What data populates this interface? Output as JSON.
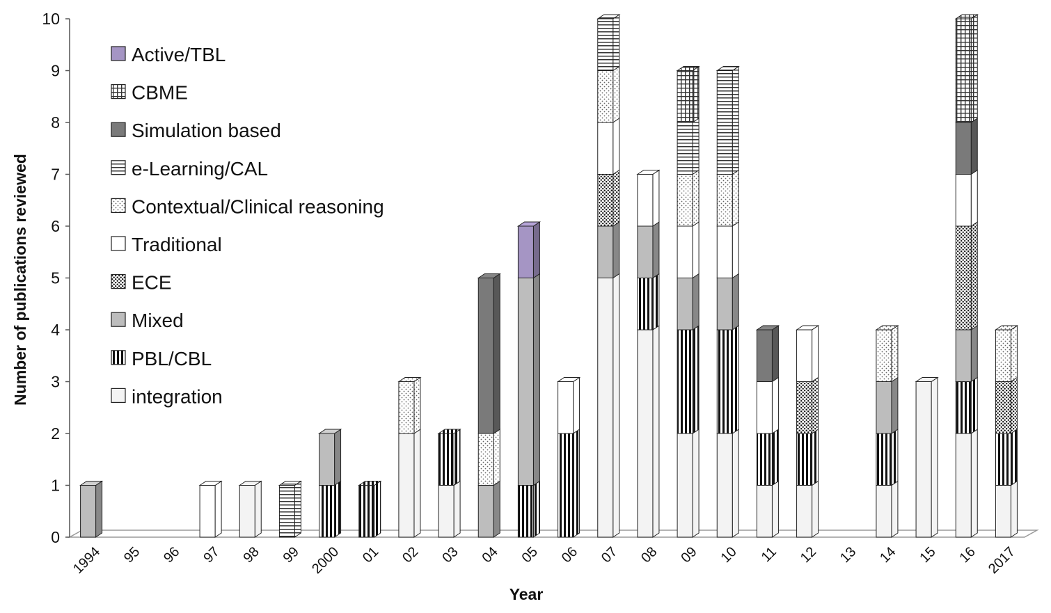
{
  "chart_data": {
    "type": "bar",
    "stacked": true,
    "three_d": true,
    "xlabel": "Year",
    "ylabel": "Number of publications reviewed",
    "ylim": [
      0,
      10
    ],
    "yticks": [
      "0",
      "1",
      "2",
      "3",
      "4",
      "5",
      "6",
      "7",
      "8",
      "9",
      "10"
    ],
    "categories": [
      "1994",
      "95",
      "96",
      "97",
      "98",
      "99",
      "2000",
      "01",
      "02",
      "03",
      "04",
      "05",
      "06",
      "07",
      "08",
      "09",
      "10",
      "11",
      "12",
      "13",
      "14",
      "15",
      "16",
      "2017"
    ],
    "legend_position": "top-left",
    "series": [
      {
        "name": "integration",
        "pattern": "light",
        "color": "#f4f4f4",
        "values": [
          0,
          0,
          0,
          0,
          1,
          0,
          0,
          0,
          2,
          1,
          0,
          0,
          0,
          5,
          4,
          2,
          2,
          1,
          1,
          0,
          1,
          3,
          2,
          1
        ]
      },
      {
        "name": "PBL/CBL",
        "pattern": "vertical-stripes",
        "color": "#111111",
        "values": [
          0,
          0,
          0,
          0,
          0,
          0,
          1,
          1,
          0,
          1,
          0,
          1,
          2,
          0,
          1,
          2,
          2,
          1,
          1,
          0,
          1,
          0,
          1,
          1
        ]
      },
      {
        "name": "Mixed",
        "pattern": "solid",
        "color": "#bdbdbd",
        "values": [
          1,
          0,
          0,
          0,
          0,
          0,
          1,
          0,
          0,
          0,
          1,
          4,
          0,
          1,
          1,
          1,
          1,
          0,
          0,
          0,
          1,
          0,
          1,
          0
        ]
      },
      {
        "name": "ECE",
        "pattern": "dense-dots",
        "color": "#444444",
        "values": [
          0,
          0,
          0,
          0,
          0,
          0,
          0,
          0,
          0,
          0,
          0,
          0,
          0,
          1,
          0,
          0,
          0,
          0,
          1,
          0,
          0,
          0,
          2,
          1
        ]
      },
      {
        "name": "Traditional",
        "pattern": "white",
        "color": "#ffffff",
        "values": [
          0,
          0,
          0,
          1,
          0,
          0,
          0,
          0,
          0,
          0,
          0,
          0,
          1,
          1,
          1,
          1,
          1,
          1,
          1,
          0,
          0,
          0,
          1,
          0
        ]
      },
      {
        "name": "Contextual/Clinical reasoning",
        "pattern": "light-dots",
        "color": "#888888",
        "values": [
          0,
          0,
          0,
          0,
          0,
          0,
          0,
          0,
          1,
          0,
          1,
          0,
          0,
          1,
          0,
          1,
          1,
          0,
          0,
          0,
          1,
          0,
          0,
          1
        ]
      },
      {
        "name": "e-Learning/CAL",
        "pattern": "horizontal-stripes",
        "color": "#555555",
        "values": [
          0,
          0,
          0,
          0,
          0,
          1,
          0,
          0,
          0,
          0,
          0,
          0,
          0,
          1,
          0,
          1,
          2,
          0,
          0,
          0,
          0,
          0,
          0,
          0
        ]
      },
      {
        "name": "Simulation based",
        "pattern": "solid",
        "color": "#7a7a7a",
        "values": [
          0,
          0,
          0,
          0,
          0,
          0,
          0,
          0,
          0,
          0,
          3,
          0,
          0,
          0,
          0,
          0,
          0,
          1,
          0,
          0,
          0,
          0,
          1,
          0
        ]
      },
      {
        "name": "CBME",
        "pattern": "grid",
        "color": "#333333",
        "values": [
          0,
          0,
          0,
          0,
          0,
          0,
          0,
          0,
          0,
          0,
          0,
          0,
          0,
          0,
          0,
          1,
          0,
          0,
          0,
          0,
          0,
          0,
          2,
          0
        ]
      },
      {
        "name": "Active/TBL",
        "pattern": "solid",
        "color": "#a595c4",
        "values": [
          0,
          0,
          0,
          0,
          0,
          0,
          0,
          0,
          0,
          0,
          0,
          1,
          0,
          0,
          0,
          0,
          0,
          0,
          0,
          0,
          0,
          0,
          0,
          0
        ]
      }
    ],
    "legend_order": [
      "Active/TBL",
      "CBME",
      "Simulation based",
      "e-Learning/CAL",
      "Contextual/Clinical reasoning",
      "Traditional",
      "ECE",
      "Mixed",
      "PBL/CBL",
      "integration"
    ]
  }
}
